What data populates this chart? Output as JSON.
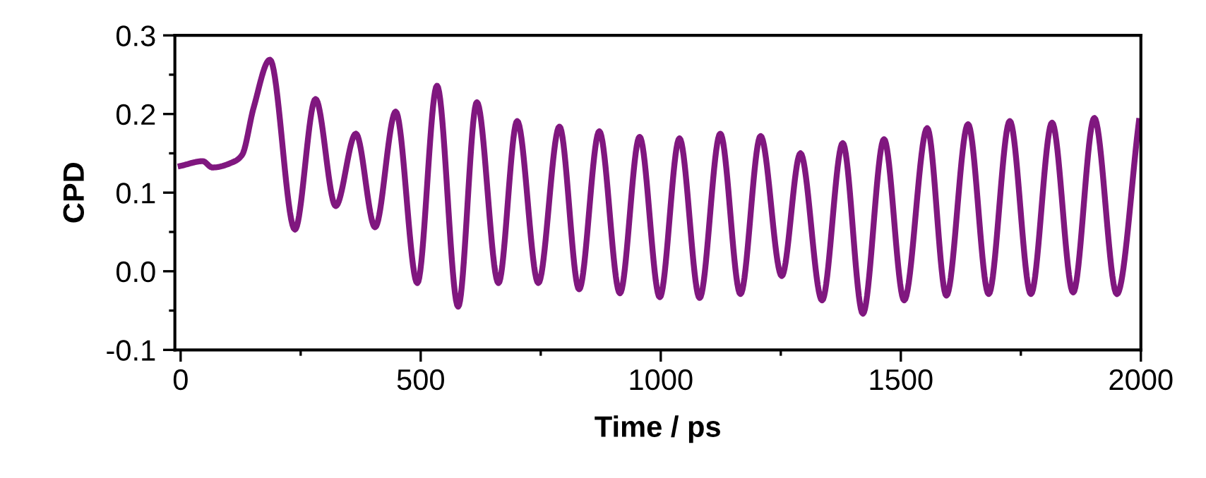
{
  "chart_data": {
    "type": "line",
    "xlabel": "Time / ps",
    "ylabel": "CPD",
    "x": [
      0,
      46,
      66,
      113,
      128,
      152,
      186,
      238,
      281,
      323,
      365,
      405,
      448,
      493,
      534,
      578,
      617,
      662,
      701,
      745,
      789,
      830,
      872,
      915,
      956,
      998,
      1039,
      1081,
      1124,
      1166,
      1208,
      1252,
      1291,
      1336,
      1379,
      1421,
      1465,
      1507,
      1555,
      1595,
      1640,
      1683,
      1727,
      1771,
      1815,
      1859,
      1903,
      1950,
      1996
    ],
    "series": [
      {
        "color": "#80177f",
        "values": [
          0.134,
          0.14,
          0.132,
          0.14,
          0.148,
          0.208,
          0.269,
          0.053,
          0.219,
          0.083,
          0.175,
          0.056,
          0.203,
          -0.015,
          0.236,
          -0.045,
          0.215,
          -0.015,
          0.191,
          -0.015,
          0.184,
          -0.023,
          0.178,
          -0.028,
          0.171,
          -0.033,
          0.169,
          -0.034,
          0.175,
          -0.029,
          0.172,
          -0.006,
          0.15,
          -0.037,
          0.163,
          -0.054,
          0.168,
          -0.037,
          0.182,
          -0.031,
          0.187,
          -0.029,
          0.191,
          -0.029,
          0.189,
          -0.027,
          0.195,
          -0.029,
          0.191
        ]
      }
    ],
    "xlim": [
      -12,
      2000
    ],
    "ylim": [
      -0.1,
      0.3
    ],
    "xticks": [
      0,
      {
        "value": 250,
        "label": null
      },
      500,
      {
        "value": 750,
        "label": null
      },
      1000,
      {
        "value": 1250,
        "label": null
      },
      1500,
      {
        "value": 1750,
        "label": null
      },
      2000
    ],
    "yticks": [
      {
        "value": -0.1,
        "label": "-0.1"
      },
      {
        "value": -0.05,
        "label": null
      },
      {
        "value": 0.0,
        "label": "0.0"
      },
      {
        "value": 0.05,
        "label": null
      },
      {
        "value": 0.1,
        "label": "0.1"
      },
      {
        "value": 0.15,
        "label": null
      },
      {
        "value": 0.2,
        "label": "0.2"
      },
      {
        "value": 0.25,
        "label": null
      },
      {
        "value": 0.3,
        "label": "0.3"
      }
    ],
    "grid": false,
    "legend": false,
    "marker": "none",
    "line_style": "solid"
  }
}
